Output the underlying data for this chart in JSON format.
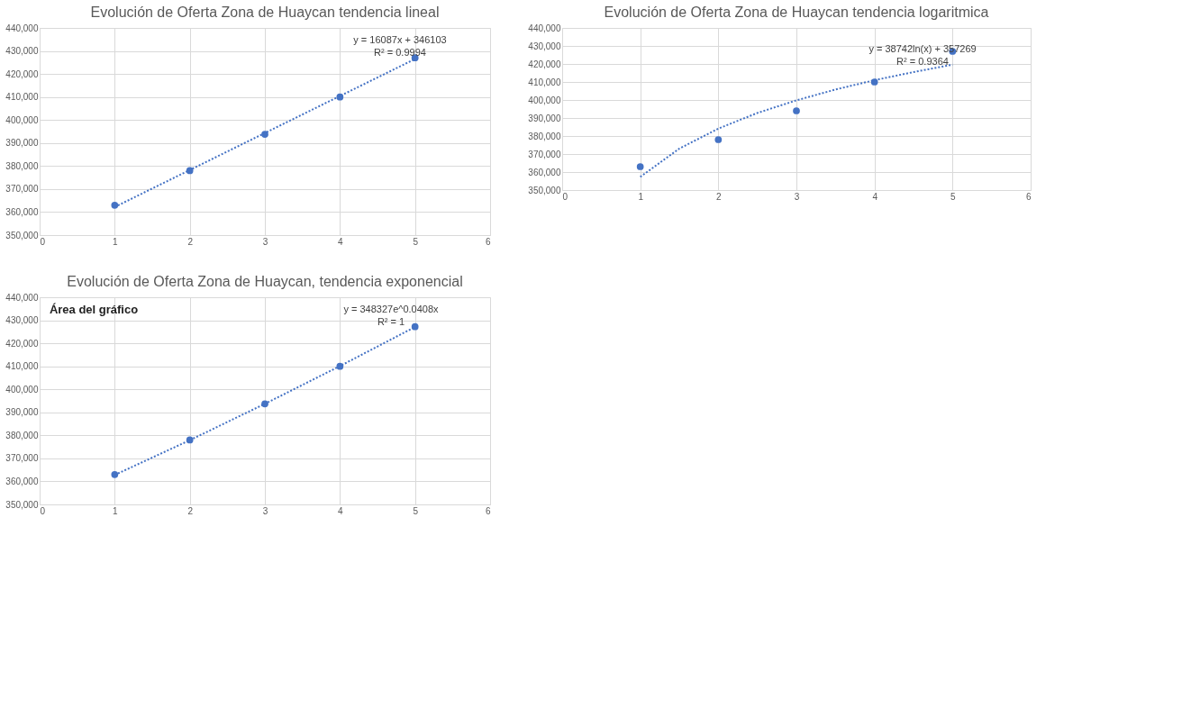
{
  "chart_data": [
    {
      "type": "scatter",
      "title": "Evolución de Oferta Zona de Huaycan tendencia lineal",
      "x": [
        1,
        2,
        3,
        4,
        5
      ],
      "xlim": [
        0,
        6
      ],
      "xticks": [
        0,
        1,
        2,
        3,
        4,
        5,
        6
      ],
      "ylim": [
        350000,
        440000
      ],
      "yticks": [
        {
          "value": 350000,
          "label": "350,000"
        },
        {
          "value": 360000,
          "label": "360,000"
        },
        {
          "value": 370000,
          "label": "370,000"
        },
        {
          "value": 380000,
          "label": "380,000"
        },
        {
          "value": 390000,
          "label": "390,000"
        },
        {
          "value": 400000,
          "label": "400,000"
        },
        {
          "value": 410000,
          "label": "410,000"
        },
        {
          "value": 420000,
          "label": "420,000"
        },
        {
          "value": 430000,
          "label": "430,000"
        },
        {
          "value": 440000,
          "label": "440,000"
        }
      ],
      "grid": true,
      "series": [
        {
          "type": "scatter",
          "color": "#4472c4",
          "marker": "circle",
          "values": [
            363000,
            378000,
            393800,
            410000,
            427000
          ]
        },
        {
          "type": "line",
          "color": "#4472c4",
          "marker": "none",
          "line_style": "dotted",
          "x": [
            1,
            5
          ],
          "values": [
            362200,
            426500
          ]
        }
      ],
      "annotations": [
        "y = 16087x + 346103",
        "R² = 0.9994"
      ]
    },
    {
      "type": "scatter",
      "title": "Evolución de Oferta Zona de Huaycan tendencia logaritmica",
      "x": [
        1,
        2,
        3,
        4,
        5
      ],
      "xlim": [
        0,
        6
      ],
      "xticks": [
        0,
        1,
        2,
        3,
        4,
        5,
        6
      ],
      "ylim": [
        350000,
        440000
      ],
      "yticks": [
        {
          "value": 350000,
          "label": "350,000"
        },
        {
          "value": 360000,
          "label": "360,000"
        },
        {
          "value": 370000,
          "label": "370,000"
        },
        {
          "value": 380000,
          "label": "380,000"
        },
        {
          "value": 390000,
          "label": "390,000"
        },
        {
          "value": 400000,
          "label": "400,000"
        },
        {
          "value": 410000,
          "label": "410,000"
        },
        {
          "value": 420000,
          "label": "420,000"
        },
        {
          "value": 430000,
          "label": "430,000"
        },
        {
          "value": 440000,
          "label": "440,000"
        }
      ],
      "grid": true,
      "series": [
        {
          "type": "scatter",
          "color": "#4472c4",
          "marker": "circle",
          "values": [
            363000,
            378000,
            394000,
            410000,
            427000
          ]
        },
        {
          "type": "line",
          "color": "#4472c4",
          "marker": "none",
          "line_style": "dotted",
          "x": [
            1,
            1.5,
            2,
            2.5,
            3,
            3.5,
            4,
            4.5,
            5
          ],
          "values": [
            357300,
            373000,
            384100,
            392800,
            399800,
            405800,
            411000,
            415500,
            419600
          ]
        }
      ],
      "annotations": [
        "y = 38742ln(x) + 357269",
        "R² = 0.9364"
      ]
    },
    {
      "type": "scatter",
      "title": "Evolución de Oferta Zona de Huaycan, tendencia exponencial",
      "x": [
        1,
        2,
        3,
        4,
        5
      ],
      "xlim": [
        0,
        6
      ],
      "xticks": [
        0,
        1,
        2,
        3,
        4,
        5,
        6
      ],
      "ylim": [
        350000,
        440000
      ],
      "yticks": [
        {
          "value": 350000,
          "label": "350,000"
        },
        {
          "value": 360000,
          "label": "360,000"
        },
        {
          "value": 370000,
          "label": "370,000"
        },
        {
          "value": 380000,
          "label": "380,000"
        },
        {
          "value": 390000,
          "label": "390,000"
        },
        {
          "value": 400000,
          "label": "400,000"
        },
        {
          "value": 410000,
          "label": "410,000"
        },
        {
          "value": 420000,
          "label": "420,000"
        },
        {
          "value": 430000,
          "label": "430,000"
        },
        {
          "value": 440000,
          "label": "440,000"
        }
      ],
      "grid": true,
      "series": [
        {
          "type": "scatter",
          "color": "#4472c4",
          "marker": "circle",
          "values": [
            363000,
            378000,
            393700,
            410000,
            427200
          ]
        },
        {
          "type": "line",
          "color": "#4472c4",
          "marker": "none",
          "line_style": "dotted",
          "x": [
            1,
            2,
            3,
            4,
            5
          ],
          "values": [
            362800,
            377900,
            393700,
            410100,
            427100
          ]
        }
      ],
      "annotations": [
        "Área del gráfico",
        "y = 348327e^0.0408x",
        "R² = 1"
      ]
    }
  ]
}
